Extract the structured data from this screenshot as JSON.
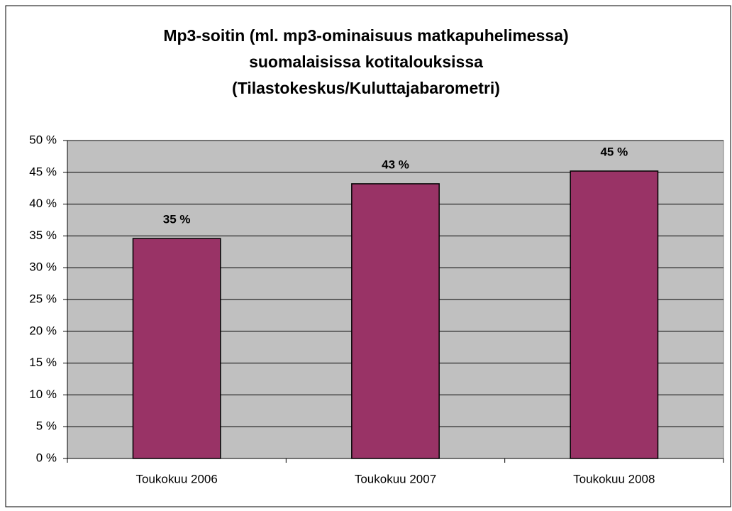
{
  "chart_data": {
    "type": "bar",
    "title": [
      "Mp3-soitin (ml. mp3-ominaisuus matkapuhelimessa)",
      "suomalaisissa kotitalouksissa",
      "(Tilastokeskus/Kuluttajabarometri)"
    ],
    "categories": [
      "Toukokuu 2006",
      "Toukokuu 2007",
      "Toukokuu 2008"
    ],
    "values": [
      34.6,
      43.2,
      45.2
    ],
    "value_labels": [
      "35 %",
      "43 %",
      "45 %"
    ],
    "color": "#993366",
    "ylim": [
      0,
      50
    ],
    "yticks": [
      {
        "value": 0,
        "label": "0 %"
      },
      {
        "value": 5,
        "label": "5 %"
      },
      {
        "value": 10,
        "label": "10 %"
      },
      {
        "value": 15,
        "label": "15 %"
      },
      {
        "value": 20,
        "label": "20 %"
      },
      {
        "value": 25,
        "label": "25 %"
      },
      {
        "value": 30,
        "label": "30 %"
      },
      {
        "value": 35,
        "label": "35 %"
      },
      {
        "value": 40,
        "label": "40 %"
      },
      {
        "value": 45,
        "label": "45 %"
      },
      {
        "value": 50,
        "label": "50 %"
      }
    ],
    "grid": true
  }
}
